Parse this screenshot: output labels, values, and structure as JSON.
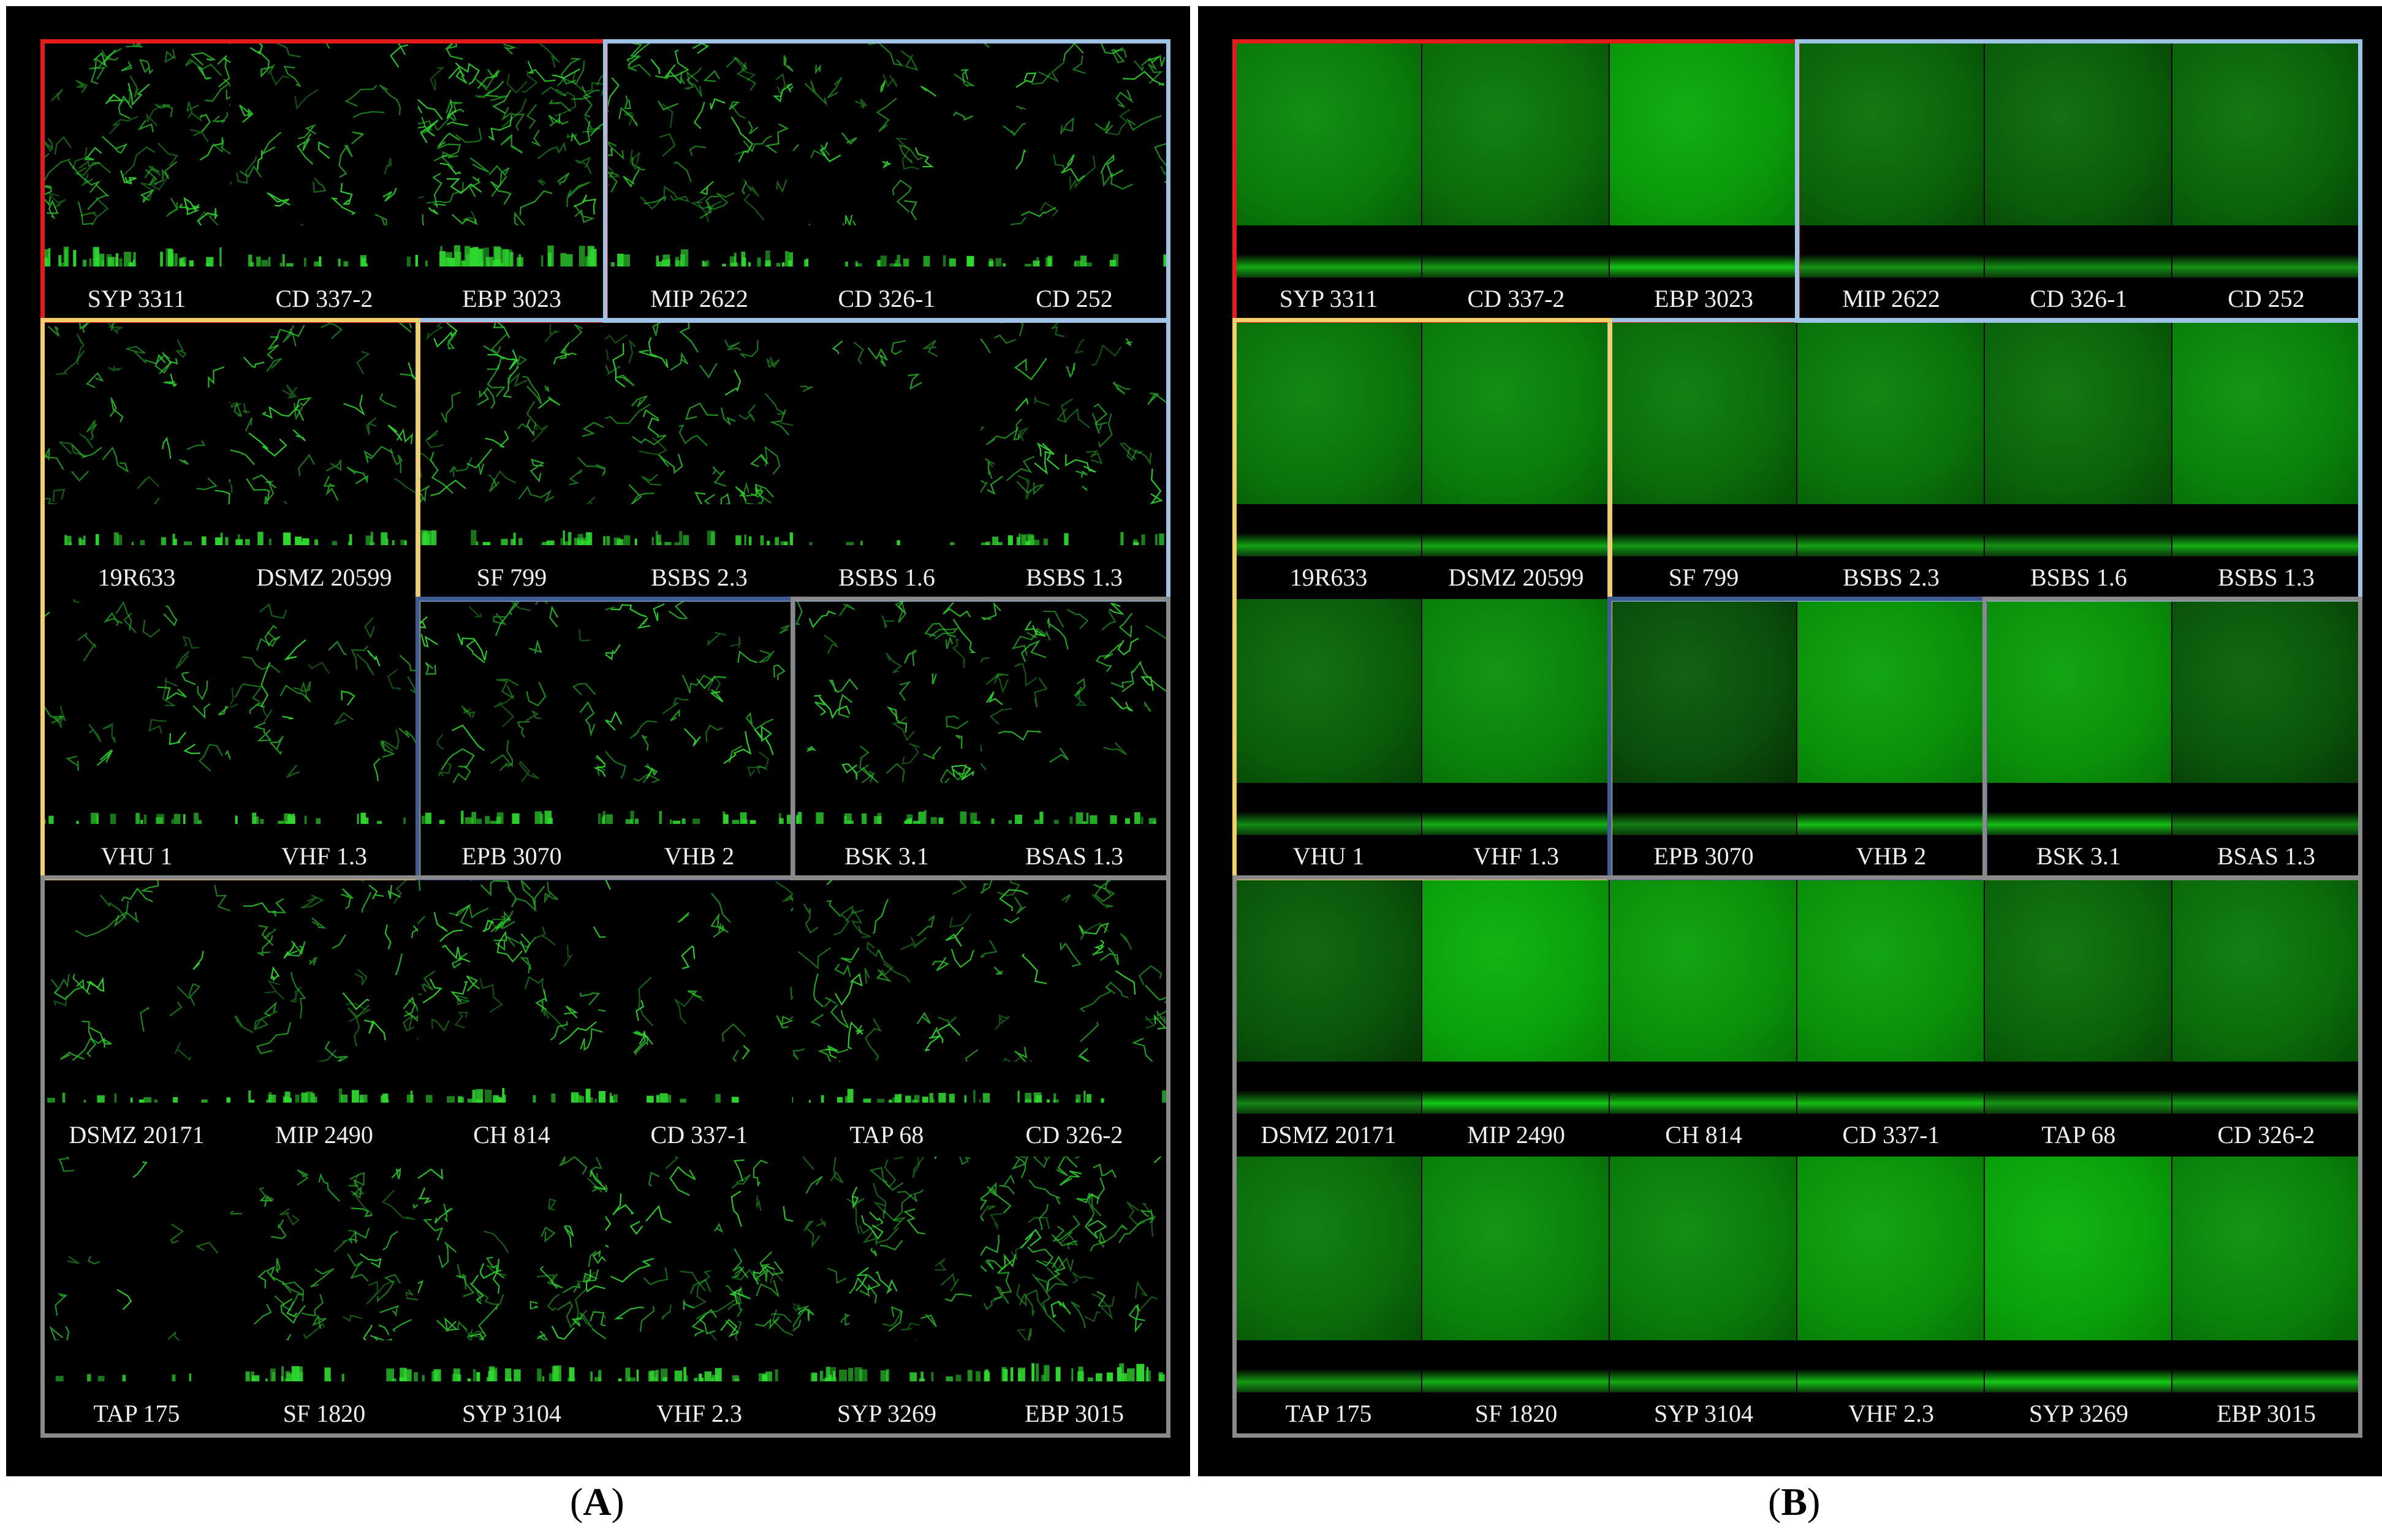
{
  "panels": [
    {
      "id": "A",
      "style": "filaments",
      "caption": "A",
      "rows": [
        [
          "SYP 3311",
          "CD 337-2",
          "EBP 3023",
          "MIP 2622",
          "CD 326-1",
          "CD 252"
        ],
        [
          "19R633",
          "DSMZ 20599",
          "SF 799",
          "BSBS 2.3",
          "BSBS 1.6",
          "BSBS 1.3"
        ],
        [
          "VHU 1",
          "VHF 1.3",
          "EPB 3070",
          "VHB 2",
          "BSK 3.1",
          "BSAS 1.3"
        ],
        [
          "DSMZ 20171",
          "MIP 2490",
          "CH 814",
          "CD 337-1",
          "TAP 68",
          "CD 326-2"
        ],
        [
          "TAP 175",
          "SF 1820",
          "SYP 3104",
          "VHF 2.3",
          "SYP 3269",
          "EBP 3015"
        ]
      ],
      "intensity": [
        [
          0.9,
          0.35,
          0.95,
          0.7,
          0.3,
          0.35
        ],
        [
          0.4,
          0.45,
          0.55,
          0.5,
          0.02,
          0.45
        ],
        [
          0.3,
          0.35,
          0.4,
          0.4,
          0.45,
          0.4
        ],
        [
          0.2,
          0.5,
          0.55,
          0.2,
          0.45,
          0.4
        ],
        [
          0.05,
          0.55,
          0.6,
          0.55,
          0.5,
          0.75
        ]
      ]
    },
    {
      "id": "B",
      "style": "carpet",
      "caption": "B",
      "rows": [
        [
          "SYP 3311",
          "CD 337-2",
          "EBP 3023",
          "MIP 2622",
          "CD 326-1",
          "CD 252"
        ],
        [
          "19R633",
          "DSMZ 20599",
          "SF 799",
          "BSBS 2.3",
          "BSBS 1.6",
          "BSBS 1.3"
        ],
        [
          "VHU 1",
          "VHF 1.3",
          "EPB 3070",
          "VHB 2",
          "BSK 3.1",
          "BSAS 1.3"
        ],
        [
          "DSMZ 20171",
          "MIP 2490",
          "CH 814",
          "CD 337-1",
          "TAP 68",
          "CD 326-2"
        ],
        [
          "TAP 175",
          "SF 1820",
          "SYP 3104",
          "VHF 2.3",
          "SYP 3269",
          "EBP 3015"
        ]
      ],
      "intensity": [
        [
          0.55,
          0.45,
          0.75,
          0.4,
          0.35,
          0.4
        ],
        [
          0.5,
          0.55,
          0.45,
          0.5,
          0.4,
          0.6
        ],
        [
          0.35,
          0.6,
          0.25,
          0.7,
          0.7,
          0.3
        ],
        [
          0.3,
          0.8,
          0.7,
          0.7,
          0.4,
          0.45
        ],
        [
          0.45,
          0.6,
          0.55,
          0.7,
          0.8,
          0.6
        ]
      ]
    }
  ],
  "colors": {
    "red_group": "#e41b1b",
    "lightblue_group": "#9cc3e6",
    "yellow_group": "#f2cf6b",
    "navy_group": "#3f5c94",
    "gray_group": "#8a8a8a",
    "fluorescence": "#2fd82f"
  },
  "groups": [
    {
      "color": "red_group",
      "row0": 0,
      "row1": 0,
      "col0": 0,
      "col1": 2
    },
    {
      "color": "lightblue_group",
      "row0": 0,
      "row1": 0,
      "col0": 3,
      "col1": 5
    },
    {
      "color": "lightblue_group",
      "row0": 1,
      "row1": 1,
      "col0": 2,
      "col1": 5
    },
    {
      "color": "yellow_group",
      "row0": 1,
      "row1": 2,
      "col0": 0,
      "col1": 1
    },
    {
      "color": "navy_group",
      "row0": 2,
      "row1": 2,
      "col0": 2,
      "col1": 3
    },
    {
      "color": "gray_group",
      "row0": 2,
      "row1": 2,
      "col0": 4,
      "col1": 5
    },
    {
      "color": "gray_group",
      "row0": 3,
      "row1": 4,
      "col0": 0,
      "col1": 5
    }
  ]
}
